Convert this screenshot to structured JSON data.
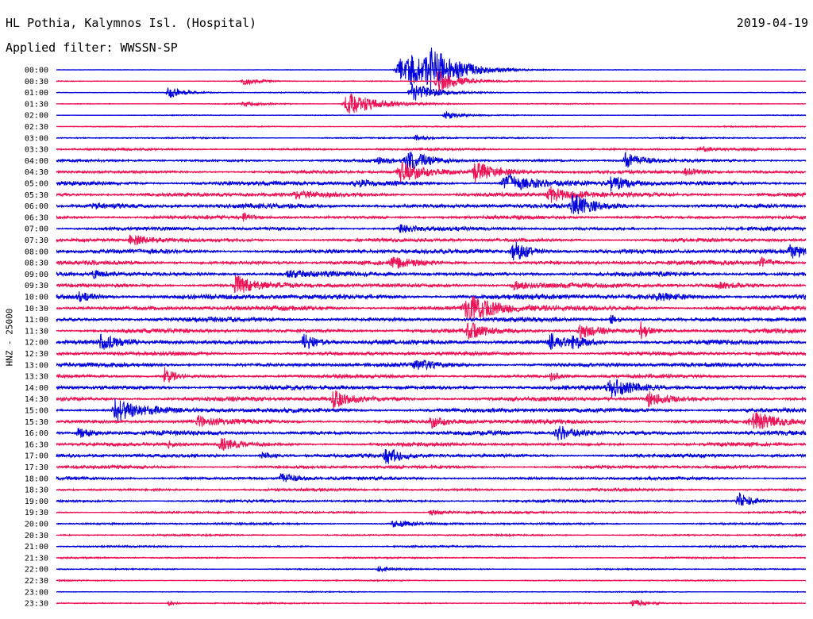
{
  "header": {
    "station": "HL Pothia, Kalymnos Isl. (Hospital)",
    "date": "2019-04-19",
    "filter_label": "Applied filter: WWSSN-SP"
  },
  "chart_data": {
    "type": "line",
    "title": "HL Pothia, Kalymnos Isl. (Hospital)",
    "ylabel": "HNZ - 25000",
    "row_labels": [
      "00:00",
      "00:30",
      "01:00",
      "01:30",
      "02:00",
      "02:30",
      "03:00",
      "03:30",
      "04:00",
      "04:30",
      "05:00",
      "05:30",
      "06:00",
      "06:30",
      "07:00",
      "07:30",
      "08:00",
      "08:30",
      "09:00",
      "09:30",
      "10:00",
      "10:30",
      "11:00",
      "11:30",
      "12:00",
      "12:30",
      "13:00",
      "13:30",
      "14:00",
      "14:30",
      "15:00",
      "15:30",
      "16:00",
      "16:30",
      "17:00",
      "17:30",
      "18:00",
      "18:30",
      "19:00",
      "19:30",
      "20:00",
      "20:30",
      "21:00",
      "21:30",
      "22:00",
      "22:30",
      "23:00",
      "23:30"
    ],
    "row_colors": [
      "#0000dd",
      "#ee1155"
    ],
    "minutes_per_row": 30,
    "rows": [
      {
        "time": "00:00",
        "noise": 0.3,
        "events": [
          [
            0.46,
            15,
            4
          ],
          [
            0.5,
            20,
            4
          ],
          [
            0.475,
            10,
            3
          ]
        ]
      },
      {
        "time": "00:30",
        "noise": 0.5,
        "events": [
          [
            0.51,
            14,
            3
          ],
          [
            0.25,
            5,
            2
          ]
        ]
      },
      {
        "time": "01:00",
        "noise": 0.6,
        "events": [
          [
            0.15,
            7,
            2
          ],
          [
            0.475,
            12,
            3
          ]
        ]
      },
      {
        "time": "01:30",
        "noise": 0.6,
        "events": [
          [
            0.39,
            14,
            4
          ],
          [
            0.25,
            3,
            2
          ]
        ]
      },
      {
        "time": "02:00",
        "noise": 0.5,
        "events": [
          [
            0.52,
            5,
            2
          ]
        ]
      },
      {
        "time": "02:30",
        "noise": 0.7,
        "events": []
      },
      {
        "time": "03:00",
        "noise": 0.8,
        "events": [
          [
            0.48,
            3,
            2
          ]
        ]
      },
      {
        "time": "03:30",
        "noise": 1.2,
        "events": [
          [
            0.86,
            3,
            2
          ]
        ]
      },
      {
        "time": "04:00",
        "noise": 1.5,
        "events": [
          [
            0.47,
            12,
            3
          ],
          [
            0.76,
            10,
            2
          ],
          [
            0.43,
            3,
            2
          ]
        ]
      },
      {
        "time": "04:30",
        "noise": 1.8,
        "events": [
          [
            0.46,
            14,
            3
          ],
          [
            0.56,
            12,
            3
          ],
          [
            0.84,
            4,
            2
          ]
        ]
      },
      {
        "time": "05:00",
        "noise": 2.5,
        "events": [
          [
            0.6,
            13,
            3
          ],
          [
            0.74,
            10,
            2
          ],
          [
            0.4,
            4,
            2
          ]
        ]
      },
      {
        "time": "05:30",
        "noise": 2.5,
        "events": [
          [
            0.66,
            9,
            3
          ],
          [
            0.32,
            4,
            2
          ]
        ]
      },
      {
        "time": "06:00",
        "noise": 2.5,
        "events": [
          [
            0.69,
            14,
            2
          ],
          [
            0.05,
            3,
            3
          ]
        ]
      },
      {
        "time": "06:30",
        "noise": 2.0,
        "events": [
          [
            0.25,
            5,
            1
          ]
        ]
      },
      {
        "time": "07:00",
        "noise": 2.0,
        "events": [
          [
            0.46,
            5,
            2
          ]
        ]
      },
      {
        "time": "07:30",
        "noise": 2.0,
        "events": [
          [
            0.1,
            7,
            2
          ]
        ]
      },
      {
        "time": "08:00",
        "noise": 2.5,
        "events": [
          [
            0.61,
            14,
            2
          ],
          [
            0.98,
            8,
            2
          ]
        ]
      },
      {
        "time": "08:30",
        "noise": 2.3,
        "events": [
          [
            0.45,
            6,
            2
          ],
          [
            0.94,
            6,
            2
          ]
        ]
      },
      {
        "time": "09:00",
        "noise": 2.5,
        "events": [
          [
            0.05,
            4,
            2
          ],
          [
            0.31,
            4,
            2
          ]
        ]
      },
      {
        "time": "09:30",
        "noise": 2.5,
        "events": [
          [
            0.24,
            12,
            2
          ],
          [
            0.61,
            6,
            2
          ],
          [
            0.88,
            5,
            2
          ]
        ]
      },
      {
        "time": "10:00",
        "noise": 3.0,
        "events": [
          [
            0.03,
            5,
            2
          ],
          [
            0.8,
            4,
            2
          ]
        ]
      },
      {
        "time": "10:30",
        "noise": 2.5,
        "events": [
          [
            0.55,
            16,
            4
          ]
        ]
      },
      {
        "time": "11:00",
        "noise": 2.5,
        "events": [
          [
            0.74,
            6,
            1
          ]
        ]
      },
      {
        "time": "11:30",
        "noise": 2.3,
        "events": [
          [
            0.55,
            10,
            2
          ],
          [
            0.7,
            9,
            2
          ],
          [
            0.78,
            13,
            1
          ]
        ]
      },
      {
        "time": "12:00",
        "noise": 2.5,
        "events": [
          [
            0.06,
            9,
            2
          ],
          [
            0.33,
            10,
            2
          ],
          [
            0.66,
            10,
            2
          ],
          [
            0.69,
            6,
            2
          ]
        ]
      },
      {
        "time": "12:30",
        "noise": 2.2,
        "events": []
      },
      {
        "time": "13:00",
        "noise": 2.3,
        "events": [
          [
            0.48,
            6,
            2
          ]
        ]
      },
      {
        "time": "13:30",
        "noise": 2.0,
        "events": [
          [
            0.145,
            12,
            1
          ],
          [
            0.66,
            6,
            1
          ]
        ]
      },
      {
        "time": "14:00",
        "noise": 2.5,
        "events": [
          [
            0.74,
            10,
            3
          ]
        ]
      },
      {
        "time": "14:30",
        "noise": 2.5,
        "events": [
          [
            0.37,
            10,
            2
          ],
          [
            0.79,
            9,
            2
          ]
        ]
      },
      {
        "time": "15:00",
        "noise": 2.5,
        "events": [
          [
            0.08,
            15,
            3
          ]
        ]
      },
      {
        "time": "15:30",
        "noise": 2.3,
        "events": [
          [
            0.19,
            6,
            2
          ],
          [
            0.5,
            7,
            2
          ],
          [
            0.93,
            12,
            3
          ]
        ]
      },
      {
        "time": "16:00",
        "noise": 2.3,
        "events": [
          [
            0.67,
            9,
            3
          ],
          [
            0.03,
            6,
            2
          ]
        ]
      },
      {
        "time": "16:30",
        "noise": 2.0,
        "events": [
          [
            0.22,
            8,
            2
          ],
          [
            0.15,
            4,
            1
          ]
        ]
      },
      {
        "time": "17:00",
        "noise": 2.0,
        "events": [
          [
            0.44,
            10,
            2
          ],
          [
            0.275,
            4,
            2
          ]
        ]
      },
      {
        "time": "17:30",
        "noise": 1.8,
        "events": []
      },
      {
        "time": "18:00",
        "noise": 1.8,
        "events": [
          [
            0.3,
            6,
            2
          ]
        ]
      },
      {
        "time": "18:30",
        "noise": 1.5,
        "events": []
      },
      {
        "time": "19:00",
        "noise": 1.5,
        "events": [
          [
            0.91,
            12,
            1.5
          ]
        ]
      },
      {
        "time": "19:30",
        "noise": 1.3,
        "events": [
          [
            0.5,
            3,
            2
          ]
        ]
      },
      {
        "time": "20:00",
        "noise": 1.2,
        "events": [
          [
            0.45,
            5,
            2
          ]
        ]
      },
      {
        "time": "20:30",
        "noise": 1.0,
        "events": []
      },
      {
        "time": "21:00",
        "noise": 1.0,
        "events": []
      },
      {
        "time": "21:30",
        "noise": 0.9,
        "events": []
      },
      {
        "time": "22:00",
        "noise": 0.8,
        "events": [
          [
            0.43,
            3,
            2
          ]
        ]
      },
      {
        "time": "22:30",
        "noise": 0.7,
        "events": []
      },
      {
        "time": "23:00",
        "noise": 0.6,
        "events": []
      },
      {
        "time": "23:30",
        "noise": 0.8,
        "events": [
          [
            0.77,
            5,
            2
          ],
          [
            0.15,
            3,
            1
          ]
        ]
      }
    ]
  }
}
